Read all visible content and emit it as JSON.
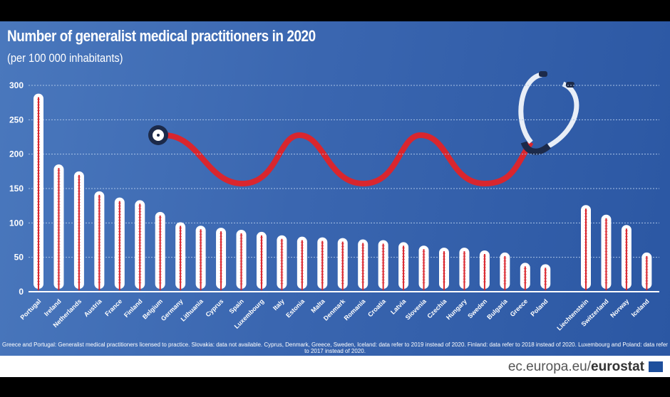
{
  "chart_data": {
    "type": "bar",
    "title": "Number of generalist medical practitioners in 2020",
    "subtitle": "(per 100 000 inhabitants)",
    "xlabel": "",
    "ylabel": "",
    "ylim": [
      0,
      300
    ],
    "yticks": [
      0,
      50,
      100,
      150,
      200,
      250,
      300
    ],
    "grid": true,
    "categories": [
      "Portugal",
      "Ireland",
      "Netherlands",
      "Austria",
      "France",
      "Finland",
      "Belgium",
      "Germany",
      "Lithuania",
      "Cyprus",
      "Spain",
      "Luxembourg",
      "Italy",
      "Estonia",
      "Malta",
      "Denmark",
      "Romania",
      "Croatia",
      "Latvia",
      "Slovenia",
      "Czechia",
      "Hungary",
      "Sweden",
      "Bulgaria",
      "Greece",
      "Poland",
      "Liechtenstein",
      "Switzerland",
      "Norway",
      "Iceland"
    ],
    "values": [
      288,
      185,
      175,
      146,
      137,
      133,
      116,
      101,
      96,
      93,
      90,
      87,
      82,
      80,
      79,
      78,
      76,
      75,
      72,
      67,
      64,
      64,
      60,
      57,
      42,
      40,
      126,
      112,
      97,
      57
    ],
    "colors": {
      "bar": "#ffffff",
      "mercury": "#d9262e",
      "background": "#3a66b0"
    }
  },
  "note": "Greece and Portugal: Generalist medical practitioners licensed to practice. Slovakia: data not available. Cyprus, Denmark, Greece, Sweden, Iceland: data refer to 2019 instead of 2020. Finland: data refer to 2018 instead of 2020. Luxembourg and Poland: data refer to 2017 instead of 2020.",
  "source": {
    "prefix": "ec.europa.eu/",
    "brand": "eurostat"
  }
}
